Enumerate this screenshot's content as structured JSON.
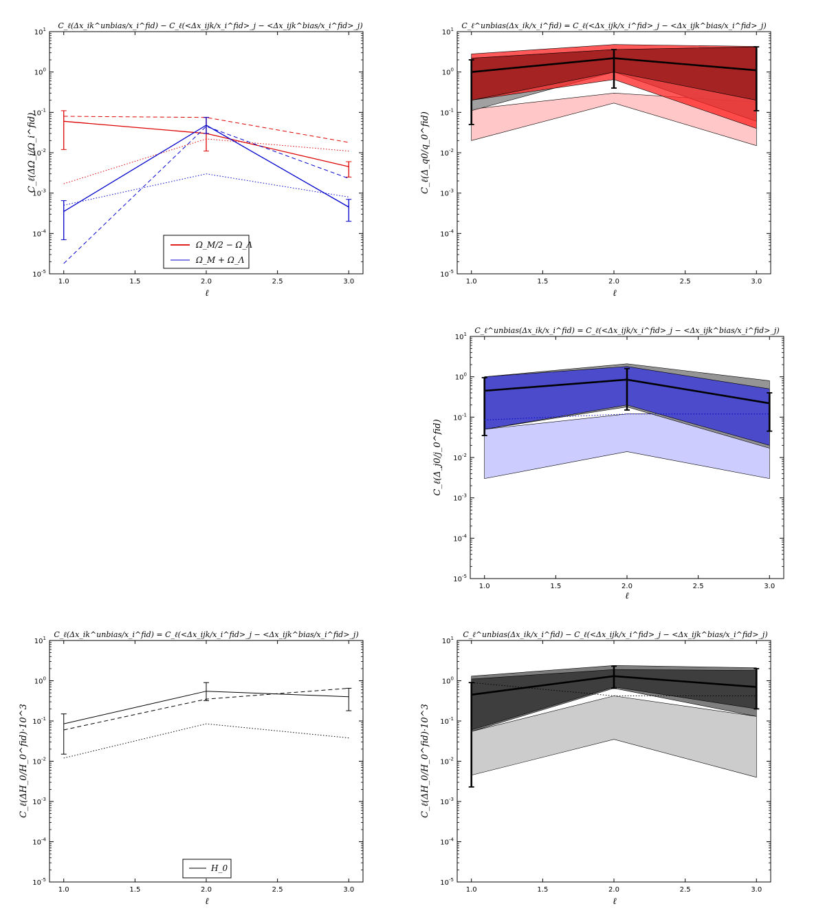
{
  "figure": {
    "x_ticks": [
      "1.0",
      "1.5",
      "2.0",
      "2.5",
      "3.0"
    ],
    "y_tick_exponents": [
      "1",
      "0",
      "-1",
      "-2",
      "-3",
      "-4",
      "-5"
    ]
  },
  "chart_data": [
    {
      "id": "a",
      "type": "line",
      "title": "C_ℓ(Δx_ik^unbias/x_i^fid) − C_ℓ(<Δx_ijk/x_i^fid>_j − <Δx_ijk^bias/x_i^fid>_j)",
      "xlabel": "ℓ",
      "ylabel": "C_ℓ(ΔΩ_i/Ω_i^fid)",
      "xlim": [
        0.9,
        3.1
      ],
      "ylim": [
        1e-05,
        10
      ],
      "yscale": "log",
      "legend_position": "lower-center",
      "legend": [
        {
          "label": "Ω_M/2 − Ω_Λ",
          "color": "#dd0000"
        },
        {
          "label": "Ω_M + Ω_Λ",
          "color": "#0000cc"
        }
      ],
      "series": [
        {
          "name": "Ω_M/2 − Ω_Λ",
          "style": "solid",
          "color": "#dd0000",
          "width": 1.3,
          "x": [
            1,
            2,
            3
          ],
          "y": [
            0.06,
            0.03,
            0.0045
          ],
          "errors": [
            [
              0.012,
              0.11
            ],
            [
              0.011,
              0.075
            ],
            [
              0.0025,
              0.006
            ]
          ]
        },
        {
          "style": "dashed",
          "color": "#dd0000",
          "width": 1,
          "x": [
            1,
            2,
            3
          ],
          "y": [
            0.08,
            0.075,
            0.018
          ]
        },
        {
          "style": "dotted",
          "color": "#dd0000",
          "width": 1,
          "x": [
            1,
            2,
            3
          ],
          "y": [
            0.0017,
            0.022,
            0.011
          ]
        },
        {
          "name": "Ω_M + Ω_Λ",
          "style": "solid",
          "color": "#0000cc",
          "width": 1.3,
          "x": [
            1,
            2,
            3
          ],
          "y": [
            0.00035,
            0.048,
            0.00045
          ],
          "errors": [
            [
              7e-05,
              0.00065
            ],
            [
              0.03,
              0.075
            ],
            [
              0.0002,
              0.0007
            ]
          ]
        },
        {
          "style": "dashed",
          "color": "#0000cc",
          "width": 1,
          "x": [
            1,
            2,
            3
          ],
          "y": [
            1.8e-05,
            0.045,
            0.0023
          ]
        },
        {
          "style": "dotted",
          "color": "#0000cc",
          "width": 1,
          "x": [
            1,
            2,
            3
          ],
          "y": [
            0.0005,
            0.003,
            0.0008
          ]
        }
      ]
    },
    {
      "id": "b",
      "type": "area",
      "title": "C_ℓ^unbias(Δx_ik/x_i^fid) = C_ℓ(<Δx_ijk/x_i^fid>_j − <Δx_ijk^bias/x_i^fid>_j)",
      "xlabel": "ℓ",
      "ylabel": "C_ℓ(Δ_q0/q_0^fid)",
      "xlim": [
        0.9,
        3.1
      ],
      "ylim": [
        1e-05,
        10
      ],
      "yscale": "log",
      "bands": [
        {
          "color": "#ff0000",
          "opacity": 0.22,
          "x": [
            1,
            2,
            3
          ],
          "lower": [
            0.02,
            0.17,
            0.015
          ],
          "upper": [
            0.12,
            0.3,
            0.18
          ]
        },
        {
          "color": "#909090",
          "opacity": 0.85,
          "x": [
            1,
            2,
            3
          ],
          "lower": [
            0.11,
            1.0,
            0.06
          ],
          "upper": [
            2.2,
            3.6,
            4.2
          ]
        },
        {
          "color": "#ff2020",
          "opacity": 0.75,
          "x": [
            1,
            2,
            3
          ],
          "lower": [
            0.2,
            0.65,
            0.04
          ],
          "upper": [
            2.8,
            4.8,
            4.3
          ]
        },
        {
          "color": "#7a1010",
          "opacity": 0.6,
          "x": [
            1,
            2,
            3
          ],
          "lower": [
            0.2,
            1.0,
            0.2
          ],
          "upper": [
            2.2,
            3.6,
            4.2
          ]
        }
      ],
      "series": [
        {
          "style": "solid",
          "color": "#000000",
          "width": 2.6,
          "x": [
            1,
            2,
            3
          ],
          "y": [
            1.0,
            2.2,
            1.1
          ],
          "errors": [
            [
              0.05,
              2.0
            ],
            [
              0.4,
              3.6
            ],
            [
              0.11,
              4.2
            ]
          ]
        }
      ]
    },
    {
      "id": "c",
      "type": "area",
      "title": "C_ℓ^unbias(Δx_ik/x_i^fid) = C_ℓ(<Δx_ijk/x_i^fid>_j − <Δx_ijk^bias/x_i^fid>_j)",
      "xlabel": "ℓ",
      "ylabel": "C_ℓ(Δ_j0/j_0^fid)",
      "xlim": [
        0.9,
        3.1
      ],
      "ylim": [
        1e-05,
        10
      ],
      "yscale": "log",
      "bands": [
        {
          "color": "#9999ff",
          "opacity": 0.5,
          "x": [
            1,
            2,
            3
          ],
          "lower": [
            0.003,
            0.014,
            0.003
          ],
          "upper": [
            0.05,
            0.12,
            0.12
          ]
        },
        {
          "color": "#8a8a8a",
          "opacity": 0.9,
          "x": [
            1,
            2,
            3
          ],
          "lower": [
            0.05,
            0.18,
            0.017
          ],
          "upper": [
            1.0,
            2.1,
            0.8
          ]
        },
        {
          "color": "#3333dd",
          "opacity": 0.75,
          "x": [
            1,
            2,
            3
          ],
          "lower": [
            0.05,
            0.2,
            0.02
          ],
          "upper": [
            1.0,
            1.8,
            0.5
          ]
        }
      ],
      "series": [
        {
          "style": "solid",
          "color": "#000000",
          "width": 2.6,
          "x": [
            1,
            2,
            3
          ],
          "y": [
            0.45,
            0.85,
            0.22
          ],
          "errors": [
            [
              0.035,
              0.95
            ],
            [
              0.15,
              1.6
            ],
            [
              0.045,
              0.4
            ]
          ]
        },
        {
          "style": "dotted",
          "color": "#0000cc",
          "width": 1,
          "x": [
            1,
            2,
            3
          ],
          "y": [
            0.085,
            0.12,
            0.12
          ]
        }
      ]
    },
    {
      "id": "d",
      "type": "line",
      "title": "C_ℓ(Δx_ik^unbias/x_i^fid) = C_ℓ(<Δx_ijk/x_i^fid>_j − <Δx_ijk^bias/x_i^fid>_j)",
      "xlabel": "ℓ",
      "ylabel": "C_ℓ(ΔH_0/H_0^fid)·10^3",
      "xlim": [
        0.9,
        3.1
      ],
      "ylim": [
        1e-05,
        10
      ],
      "yscale": "log",
      "legend_position": "lower-center",
      "legend": [
        {
          "label": "H_0",
          "color": "#000000"
        }
      ],
      "series": [
        {
          "name": "H_0",
          "style": "solid",
          "color": "#000000",
          "width": 1,
          "x": [
            1,
            2,
            3
          ],
          "y": [
            0.085,
            0.55,
            0.4
          ],
          "errors": [
            [
              0.015,
              0.15
            ],
            [
              0.32,
              0.9
            ],
            [
              0.18,
              0.65
            ]
          ]
        },
        {
          "style": "dashed",
          "color": "#000000",
          "width": 1,
          "x": [
            1,
            2,
            3
          ],
          "y": [
            0.06,
            0.35,
            0.65
          ]
        },
        {
          "style": "dotted",
          "color": "#000000",
          "width": 1,
          "x": [
            1,
            2,
            3
          ],
          "y": [
            0.012,
            0.085,
            0.038
          ]
        }
      ]
    },
    {
      "id": "e",
      "type": "area",
      "title": "C_ℓ^unbias(Δx_ik/x_i^fid) − C_ℓ(<Δx_ijk/x_i^fid>_j − <Δx_ijk^bias/x_i^fid>_j)",
      "xlabel": "ℓ",
      "ylabel": "C_ℓ(ΔH_0/H_0^fid)·10^3",
      "xlim": [
        0.9,
        3.1
      ],
      "ylim": [
        1e-05,
        10
      ],
      "yscale": "log",
      "bands": [
        {
          "color": "#bbbbbb",
          "opacity": 0.75,
          "x": [
            1,
            2,
            3
          ],
          "lower": [
            0.0045,
            0.035,
            0.004
          ],
          "upper": [
            0.055,
            0.42,
            0.13
          ]
        },
        {
          "color": "#777777",
          "opacity": 0.95,
          "x": [
            1,
            2,
            3
          ],
          "lower": [
            0.055,
            0.65,
            0.13
          ],
          "upper": [
            1.3,
            2.4,
            2.1
          ]
        },
        {
          "color": "#333333",
          "opacity": 0.85,
          "x": [
            1,
            2,
            3
          ],
          "lower": [
            0.06,
            0.7,
            0.2
          ],
          "upper": [
            1.1,
            1.9,
            1.8
          ]
        }
      ],
      "series": [
        {
          "style": "solid",
          "color": "#000000",
          "width": 2.6,
          "x": [
            1,
            2,
            3
          ],
          "y": [
            0.45,
            1.3,
            0.7
          ],
          "errors": [
            [
              0.0023,
              0.9
            ],
            [
              0.65,
              2.3
            ],
            [
              0.2,
              2.0
            ]
          ]
        },
        {
          "style": "dotted",
          "color": "#000000",
          "width": 1,
          "x": [
            1,
            2,
            3
          ],
          "y": [
            0.9,
            0.42,
            0.42
          ]
        }
      ]
    }
  ]
}
